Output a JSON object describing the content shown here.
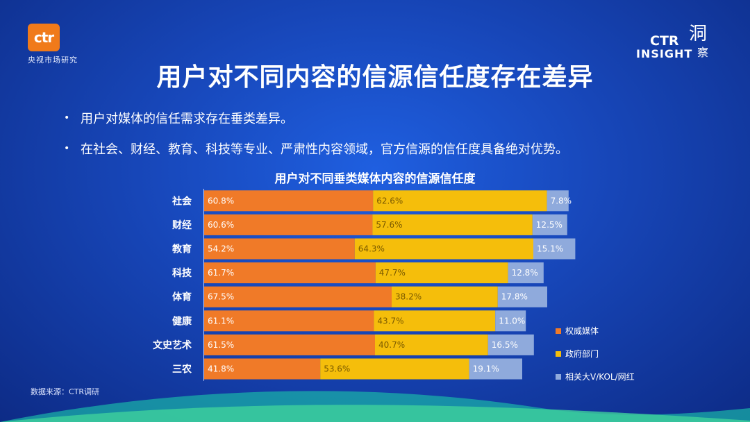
{
  "brand": {
    "logo_text": "ctr",
    "logo_sub": "央视市场研究",
    "insight_ctr": "CTR",
    "insight_word": "INSIGHT",
    "insight_cn_1": "洞",
    "insight_cn_2": "察"
  },
  "title": "用户对不同内容的信源信任度存在差异",
  "bullets": [
    "用户对媒体的信任需求存在垂类差异。",
    "在社会、财经、教育、科技等专业、严肃性内容领域，官方信源的信任度具备绝对优势。"
  ],
  "source": "数据来源：CTR调研",
  "colors": {
    "s1": "#f07a28",
    "s2": "#f5be0b",
    "s3": "#8faadc"
  },
  "chart_data": {
    "type": "bar",
    "orientation": "horizontal",
    "stacked": true,
    "title": "用户对不同垂类媒体内容的信源信任度",
    "categories": [
      "社会",
      "财经",
      "教育",
      "科技",
      "体育",
      "健康",
      "文史艺术",
      "三农"
    ],
    "series": [
      {
        "name": "权威媒体",
        "values": [
          60.8,
          60.6,
          54.2,
          61.7,
          67.5,
          61.1,
          61.5,
          41.8
        ],
        "labels": [
          "60.8%",
          "60.6%",
          "54.2%",
          "61.7%",
          "67.5%",
          "61.1%",
          "61.5%",
          "41.8%"
        ]
      },
      {
        "name": "政府部门",
        "values": [
          62.6,
          57.6,
          64.3,
          47.7,
          38.2,
          43.7,
          40.7,
          53.6
        ],
        "labels": [
          "62.6%",
          "57.6%",
          "64.3%",
          "47.7%",
          "38.2%",
          "43.7%",
          "40.7%",
          "53.6%"
        ]
      },
      {
        "name": "相关大V/KOL/网红",
        "values": [
          7.8,
          12.5,
          15.1,
          12.8,
          17.8,
          11.0,
          16.5,
          19.1
        ],
        "labels": [
          "7.8%",
          "12.5%",
          "15.1%",
          "12.8%",
          "17.8%",
          "11.0%",
          "16.5%",
          "19.1%"
        ]
      }
    ],
    "legend_position": "right"
  }
}
